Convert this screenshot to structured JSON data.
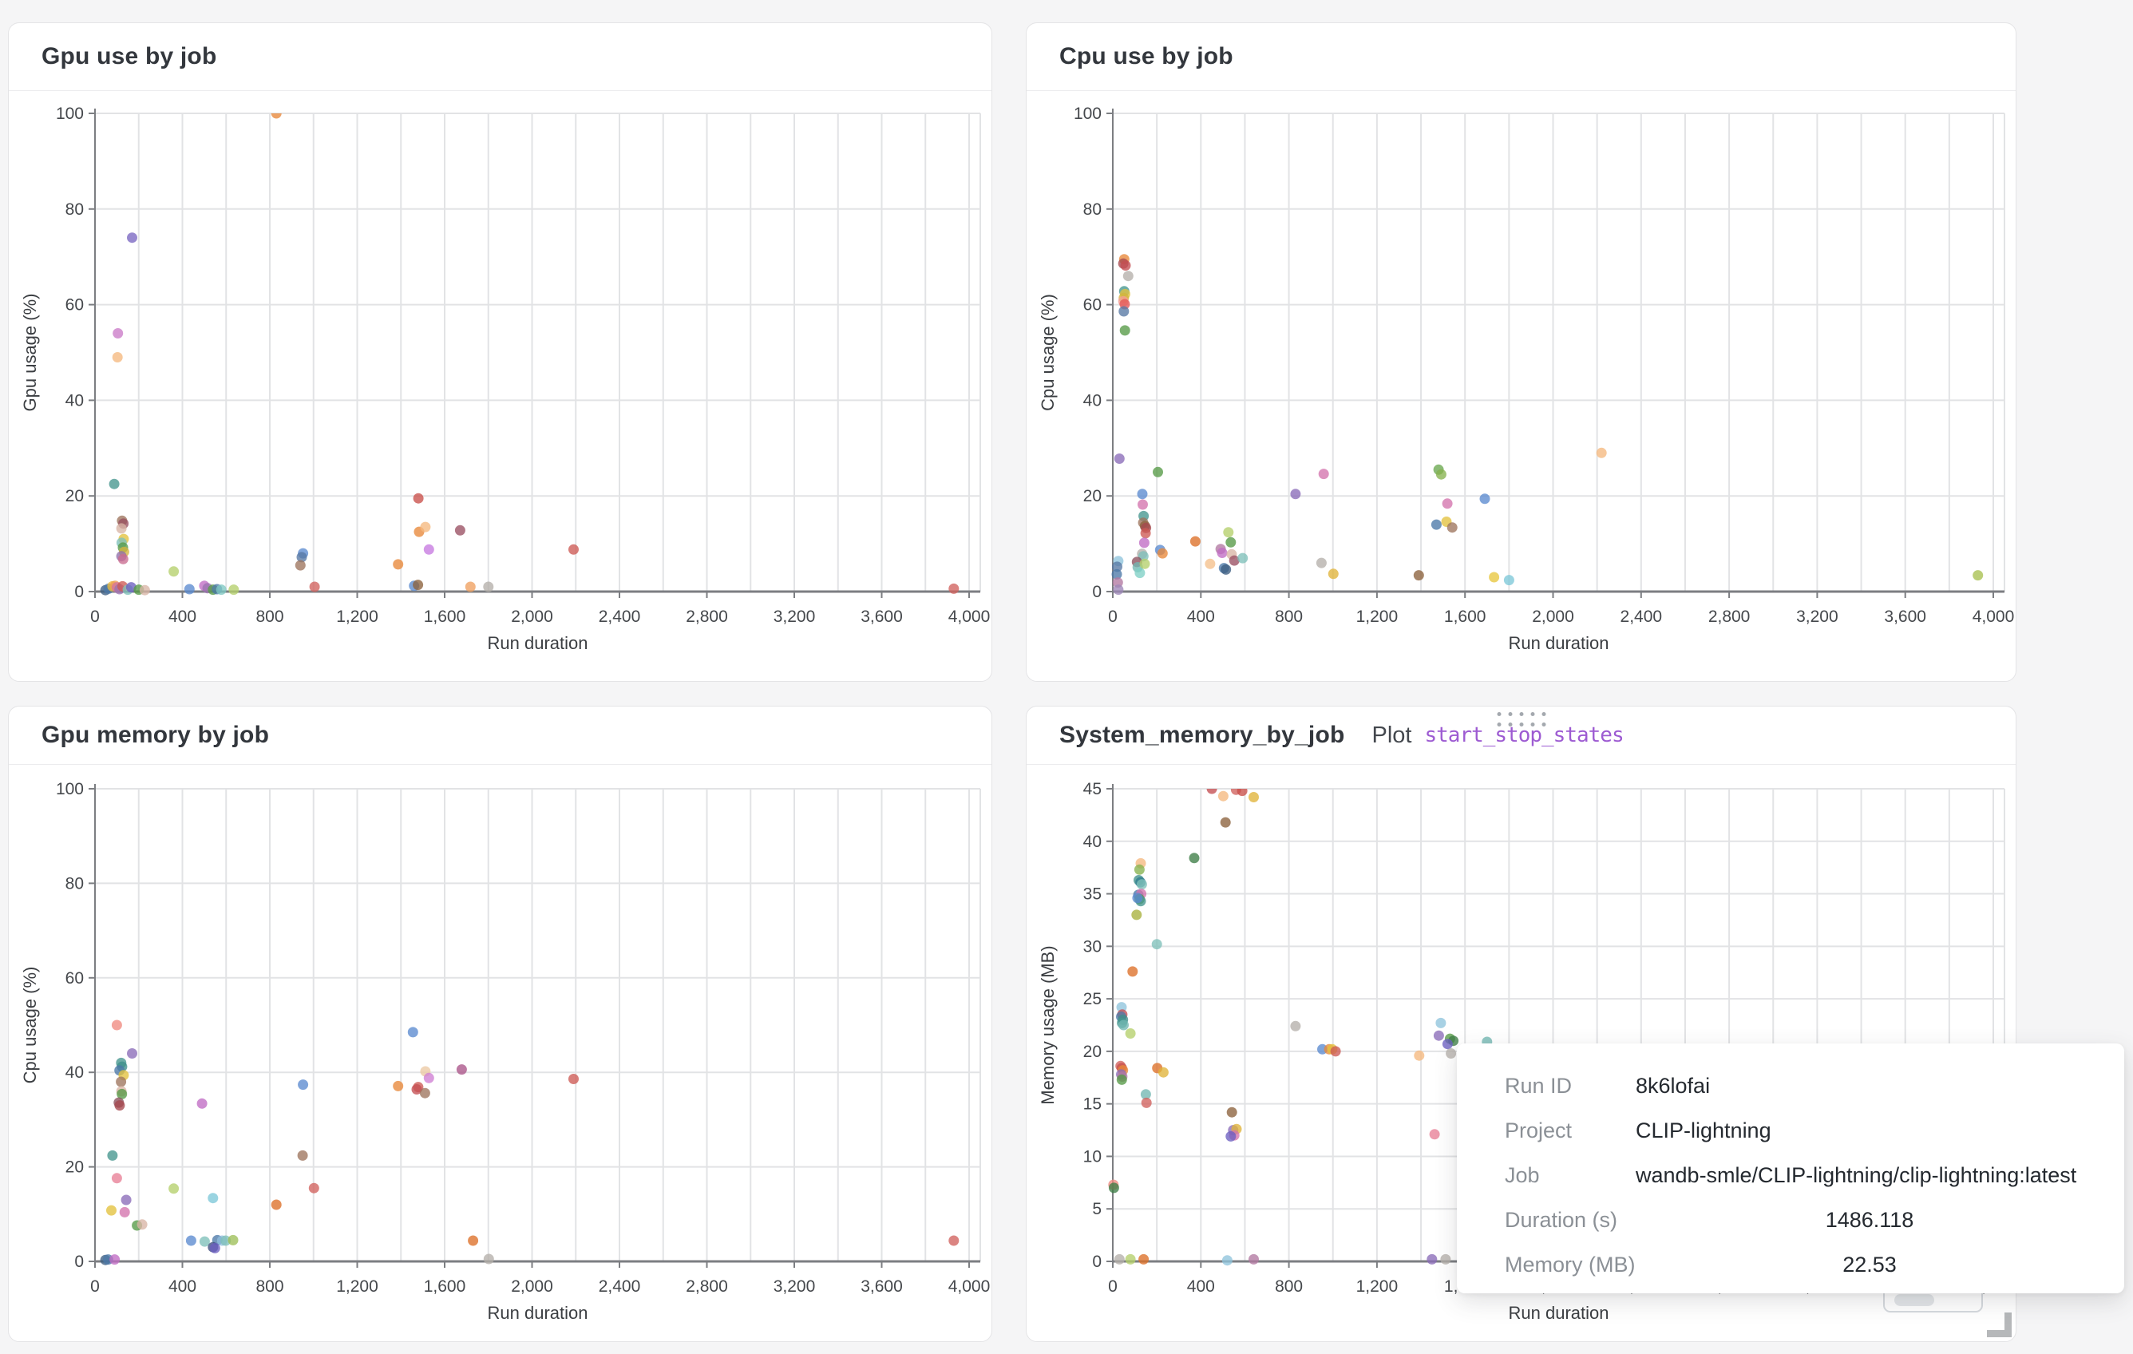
{
  "page": {
    "background": "#f5f5f6",
    "accent_link_color": "#9d5bd2"
  },
  "panels": [
    {
      "id": "gpu-use",
      "title": "Gpu use by job"
    },
    {
      "id": "cpu-use",
      "title": "Cpu use by job"
    },
    {
      "id": "gpu-memory",
      "title": "Gpu memory by job"
    },
    {
      "id": "system-memory",
      "title": "System_memory_by_job",
      "plot_label": "Plot",
      "plot_link": "start_stop_states"
    }
  ],
  "tooltip": {
    "rows": [
      {
        "label": "Run ID",
        "value": "8k6lofai",
        "align": "left"
      },
      {
        "label": "Project",
        "value": "CLIP-lightning",
        "align": "left"
      },
      {
        "label": "Job",
        "value": "wandb-smle/CLIP-lightning/clip-lightning:latest",
        "align": "left"
      },
      {
        "label": "Duration (s)",
        "value": "1486.118",
        "align": "center"
      },
      {
        "label": "Memory (MB)",
        "value": "22.53",
        "align": "center"
      }
    ]
  },
  "chart_data": [
    {
      "type": "scatter",
      "title": "Gpu use by job",
      "xlabel": "Run duration",
      "ylabel": "Gpu usage (%)",
      "xlim": [
        0,
        4000
      ],
      "ylim": [
        0,
        100
      ],
      "x_tick_step": 400,
      "x_grid_step": 200,
      "y_tick_step": 20,
      "grid": true,
      "legend": "none",
      "points": [
        [
          830,
          100,
          "#e8883a"
        ],
        [
          170,
          74,
          "#7a66c2"
        ],
        [
          105,
          54,
          "#cb7bc8"
        ],
        [
          103,
          49,
          "#f5b97f"
        ],
        [
          88,
          22.5,
          "#45968e"
        ],
        [
          124,
          14.8,
          "#9d755d"
        ],
        [
          130,
          14.2,
          "#994f5f"
        ],
        [
          121,
          13.2,
          "#d8b5a5"
        ],
        [
          131,
          11,
          "#e3c23d"
        ],
        [
          122,
          10.2,
          "#7fc0ba"
        ],
        [
          128,
          9.2,
          "#569a47"
        ],
        [
          133,
          8.3,
          "#d4b43e"
        ],
        [
          121,
          7.4,
          "#8f70ab"
        ],
        [
          129,
          6.8,
          "#c96b8f"
        ],
        [
          360,
          4.2,
          "#b5cf6b"
        ],
        [
          952,
          8,
          "#5b8bd0"
        ],
        [
          946,
          7.2,
          "#5778a4"
        ],
        [
          940,
          5.5,
          "#9d755d"
        ],
        [
          1005,
          1,
          "#d1615d"
        ],
        [
          1480,
          19.5,
          "#c9504a"
        ],
        [
          1483,
          12.5,
          "#e8883a"
        ],
        [
          1512,
          13.5,
          "#f5b97f"
        ],
        [
          1528,
          8.8,
          "#c77ae0"
        ],
        [
          1387,
          5.7,
          "#e8883a"
        ],
        [
          1671,
          12.8,
          "#9a4f63"
        ],
        [
          2190,
          8.8,
          "#cd5a54"
        ],
        [
          1718,
          1,
          "#f0a060"
        ],
        [
          1800,
          1,
          "#b5b0ab"
        ],
        [
          3930,
          0.6,
          "#d1615d"
        ],
        [
          48,
          0.3,
          "#3c5e82"
        ],
        [
          62,
          0.6,
          "#4c78a8"
        ],
        [
          80,
          1.1,
          "#e8b83d"
        ],
        [
          92,
          1.2,
          "#ef9f52"
        ],
        [
          100,
          0.9,
          "#d4739f"
        ],
        [
          112,
          0.5,
          "#9b72b0"
        ],
        [
          126,
          1.1,
          "#cd5a54"
        ],
        [
          150,
          0.4,
          "#7fc0ba"
        ],
        [
          166,
          0.9,
          "#6b5fc0"
        ],
        [
          200,
          0.4,
          "#569a47"
        ],
        [
          228,
          0.3,
          "#d8b5a5"
        ],
        [
          432,
          0.5,
          "#5b8bd0"
        ],
        [
          500,
          1.2,
          "#c06cc4"
        ],
        [
          515,
          0.7,
          "#9b72b0"
        ],
        [
          540,
          0.4,
          "#569a47"
        ],
        [
          558,
          0.5,
          "#4c78a8"
        ],
        [
          578,
          0.4,
          "#7fc8c3"
        ],
        [
          635,
          0.4,
          "#b5cf6b"
        ],
        [
          1460,
          1.2,
          "#5b8bd0"
        ],
        [
          1478,
          1.4,
          "#8c613c"
        ]
      ]
    },
    {
      "type": "scatter",
      "title": "Cpu use by job",
      "xlabel": "Run duration",
      "ylabel": "Cpu usage (%)",
      "xlim": [
        0,
        4000
      ],
      "ylim": [
        0,
        100
      ],
      "x_tick_step": 400,
      "x_grid_step": 200,
      "y_tick_step": 20,
      "grid": true,
      "legend": "none",
      "points": [
        [
          52,
          69.5,
          "#e8883a"
        ],
        [
          48,
          68.6,
          "#a6484e"
        ],
        [
          58,
          68.2,
          "#c44e52"
        ],
        [
          70,
          66,
          "#b5b0ab"
        ],
        [
          52,
          62.8,
          "#45968e"
        ],
        [
          56,
          62.2,
          "#e3c23d"
        ],
        [
          50,
          61.4,
          "#d4b43e"
        ],
        [
          48,
          60.7,
          "#f59d95"
        ],
        [
          54,
          60.1,
          "#e45756"
        ],
        [
          50,
          58.6,
          "#5778a4"
        ],
        [
          55,
          54.6,
          "#569a47"
        ],
        [
          30,
          27.8,
          "#8b6bb8"
        ],
        [
          205,
          25,
          "#569a47"
        ],
        [
          134,
          20.4,
          "#5b8bd0"
        ],
        [
          136,
          18.2,
          "#d373ad"
        ],
        [
          140,
          15.8,
          "#45968e"
        ],
        [
          138,
          14.4,
          "#9d755d"
        ],
        [
          146,
          13.7,
          "#8c613c"
        ],
        [
          151,
          13.3,
          "#a6484e"
        ],
        [
          149,
          12.2,
          "#cd5a54"
        ],
        [
          143,
          10.2,
          "#c06cc4"
        ],
        [
          133,
          7.9,
          "#b5b0ab"
        ],
        [
          139,
          7.4,
          "#7fc0ba"
        ],
        [
          110,
          6.2,
          "#8c4f5c"
        ],
        [
          113,
          5.1,
          "#72b7b2"
        ],
        [
          123,
          3.9,
          "#7fd0c5"
        ],
        [
          145,
          5.8,
          "#b5cf6b"
        ],
        [
          25,
          6.4,
          "#90c4dd"
        ],
        [
          20,
          5.2,
          "#5778a4"
        ],
        [
          18,
          3.6,
          "#4c78a8"
        ],
        [
          23,
          1.9,
          "#b279a2"
        ],
        [
          25,
          0.4,
          "#9e86b8"
        ],
        [
          215,
          8.7,
          "#5b8bd0"
        ],
        [
          226,
          8,
          "#e8883a"
        ],
        [
          375,
          10.5,
          "#dd6f28"
        ],
        [
          442,
          5.8,
          "#f5c08c"
        ],
        [
          525,
          12.4,
          "#b5cf6b"
        ],
        [
          536,
          10.3,
          "#569a47"
        ],
        [
          490,
          8.9,
          "#b279a2"
        ],
        [
          497,
          8.1,
          "#c06cc4"
        ],
        [
          540,
          7.8,
          "#d8b5a5"
        ],
        [
          552,
          6.5,
          "#9a4f63"
        ],
        [
          590,
          7,
          "#7fc0ba"
        ],
        [
          505,
          4.9,
          "#4c78a8"
        ],
        [
          514,
          4.6,
          "#3c5e82"
        ],
        [
          830,
          20.4,
          "#8b6bb8"
        ],
        [
          958,
          24.6,
          "#d373ad"
        ],
        [
          948,
          6,
          "#b5b0ab"
        ],
        [
          1002,
          3.7,
          "#e0b43a"
        ],
        [
          1390,
          3.4,
          "#8c613c"
        ],
        [
          1480,
          25.5,
          "#6aa84f"
        ],
        [
          1492,
          24.5,
          "#87b24e"
        ],
        [
          1520,
          18.4,
          "#d373ad"
        ],
        [
          1470,
          14,
          "#4c78a8"
        ],
        [
          1516,
          14.6,
          "#e3c23d"
        ],
        [
          1542,
          13.4,
          "#9d755d"
        ],
        [
          1690,
          19.4,
          "#5b8bd0"
        ],
        [
          1732,
          3,
          "#e8c63f"
        ],
        [
          1800,
          2.4,
          "#7ec8d8"
        ],
        [
          2220,
          29,
          "#f5b97f"
        ],
        [
          3930,
          3.4,
          "#a8c050"
        ]
      ]
    },
    {
      "type": "scatter",
      "title": "Gpu memory by job",
      "xlabel": "Run duration",
      "ylabel": "Cpu usage (%)",
      "xlim": [
        0,
        4000
      ],
      "ylim": [
        0,
        100
      ],
      "x_tick_step": 400,
      "x_grid_step": 200,
      "y_tick_step": 20,
      "grid": true,
      "legend": "none",
      "points": [
        [
          100,
          50,
          "#ef8a80"
        ],
        [
          170,
          44,
          "#8b6bb8"
        ],
        [
          120,
          42,
          "#45968e"
        ],
        [
          124,
          41.2,
          "#3f8f8a"
        ],
        [
          112,
          40.4,
          "#4c78a8"
        ],
        [
          131,
          39.4,
          "#e3c23d"
        ],
        [
          119,
          38,
          "#9d755d"
        ],
        [
          121,
          36,
          "#d8b5a5"
        ],
        [
          123,
          35.4,
          "#569a47"
        ],
        [
          109,
          33.6,
          "#8c4f5c"
        ],
        [
          113,
          33,
          "#a6484e"
        ],
        [
          80,
          22.4,
          "#45968e"
        ],
        [
          100,
          17.6,
          "#e87f96"
        ],
        [
          360,
          15.4,
          "#b5cf6b"
        ],
        [
          143,
          13,
          "#8b6bb8"
        ],
        [
          540,
          13.4,
          "#7ec8d8"
        ],
        [
          136,
          10.4,
          "#d373ad"
        ],
        [
          75,
          10.8,
          "#e3c23d"
        ],
        [
          192,
          7.6,
          "#569a47"
        ],
        [
          216,
          7.8,
          "#d8b5a5"
        ],
        [
          440,
          4.4,
          "#5b8bd0"
        ],
        [
          502,
          4.2,
          "#7fc0ba"
        ],
        [
          560,
          4.5,
          "#4c78a8"
        ],
        [
          582,
          4.4,
          "#90bede"
        ],
        [
          598,
          4.4,
          "#7fc0ba"
        ],
        [
          632,
          4.5,
          "#9ebf58"
        ],
        [
          540,
          3,
          "#3c4b7c"
        ],
        [
          549,
          2.8,
          "#6b5fc0"
        ],
        [
          830,
          12,
          "#dd6f28"
        ],
        [
          950,
          22.4,
          "#9d755d"
        ],
        [
          1002,
          15.5,
          "#d1615d"
        ],
        [
          952,
          37.4,
          "#5b8bd0"
        ],
        [
          490,
          33.4,
          "#c06cc4"
        ],
        [
          1455,
          48.5,
          "#5b8bd0"
        ],
        [
          1387,
          37.1,
          "#e8883a"
        ],
        [
          1479,
          36.9,
          "#cd5a54"
        ],
        [
          1472,
          36.4,
          "#c44e52"
        ],
        [
          1512,
          40.2,
          "#ecc9a4"
        ],
        [
          1528,
          38.8,
          "#cf7fd4"
        ],
        [
          1510,
          35.6,
          "#9d755d"
        ],
        [
          1678,
          40.6,
          "#aa5589"
        ],
        [
          2190,
          38.6,
          "#cd5a54"
        ],
        [
          1730,
          4.4,
          "#dd6f28"
        ],
        [
          1802,
          0.5,
          "#b5b0ab"
        ],
        [
          3930,
          4.4,
          "#d1615d"
        ],
        [
          48,
          0.3,
          "#3c5e82"
        ],
        [
          60,
          0.4,
          "#4c78a8"
        ],
        [
          90,
          0.4,
          "#c06cc4"
        ]
      ]
    },
    {
      "type": "scatter",
      "title": "System_memory_by_job",
      "xlabel": "Run duration",
      "ylabel": "Memory usage (MB)",
      "xlim": [
        0,
        4000
      ],
      "ylim": [
        0,
        45
      ],
      "x_tick_step": 400,
      "x_grid_step": 200,
      "y_tick_step": 5,
      "grid": true,
      "legend": "none",
      "points": [
        [
          450,
          45,
          "#c44e52"
        ],
        [
          560,
          44.9,
          "#d1615d"
        ],
        [
          588,
          44.8,
          "#c9504a"
        ],
        [
          502,
          44.3,
          "#f5b97f"
        ],
        [
          640,
          44.2,
          "#e0b43a"
        ],
        [
          512,
          41.8,
          "#8c613c"
        ],
        [
          370,
          38.4,
          "#3e7d46"
        ],
        [
          127,
          37.9,
          "#f5b97f"
        ],
        [
          121,
          37.3,
          "#87b24e"
        ],
        [
          118,
          36.3,
          "#3f8f8a"
        ],
        [
          126,
          36.1,
          "#2f7e8f"
        ],
        [
          132,
          35.9,
          "#7fc0ba"
        ],
        [
          116,
          34.9,
          "#4c78a8"
        ],
        [
          129,
          35,
          "#d373ad"
        ],
        [
          121,
          34.5,
          "#569a47"
        ],
        [
          127,
          34.3,
          "#45968e"
        ],
        [
          112,
          34.6,
          "#5b8bd0"
        ],
        [
          108,
          33,
          "#a8b13c"
        ],
        [
          200,
          30.2,
          "#7fc0ba"
        ],
        [
          90,
          27.6,
          "#dd6f28"
        ],
        [
          40,
          24.2,
          "#90c4dd"
        ],
        [
          43,
          23.5,
          "#c44e52"
        ],
        [
          38,
          23.3,
          "#4c78a8"
        ],
        [
          46,
          23,
          "#3f8f8a"
        ],
        [
          42,
          22.7,
          "#45968e"
        ],
        [
          49,
          22.5,
          "#72b7b2"
        ],
        [
          80,
          21.7,
          "#b5cf6b"
        ],
        [
          830,
          22.4,
          "#b5b0ab"
        ],
        [
          35,
          18.6,
          "#d1615d"
        ],
        [
          41,
          18.4,
          "#c9504a"
        ],
        [
          46,
          18.2,
          "#e8883a"
        ],
        [
          38,
          17.8,
          "#8b6bb8"
        ],
        [
          43,
          17.6,
          "#b279a2"
        ],
        [
          41,
          17.3,
          "#569a47"
        ],
        [
          202,
          18.4,
          "#dd6f28"
        ],
        [
          230,
          18,
          "#e0b43a"
        ],
        [
          150,
          15.9,
          "#72b7b2"
        ],
        [
          153,
          15.1,
          "#d1615d"
        ],
        [
          952,
          20.2,
          "#5b8bd0"
        ],
        [
          983,
          20.2,
          "#e8883a"
        ],
        [
          997,
          20.2,
          "#e3c23d"
        ],
        [
          1012,
          20,
          "#cd5a54"
        ],
        [
          1392,
          19.6,
          "#f5b97f"
        ],
        [
          1490,
          22.7,
          "#90c4dd"
        ],
        [
          1481,
          21.5,
          "#8b6bb8"
        ],
        [
          1532,
          21.2,
          "#569a47"
        ],
        [
          1547,
          21,
          "#3e7d46"
        ],
        [
          1521,
          20.7,
          "#6b5fc0"
        ],
        [
          1536,
          19.8,
          "#b5b0ab"
        ],
        [
          1700,
          20.9,
          "#72b7b2"
        ],
        [
          1462,
          12.1,
          "#e87f96"
        ],
        [
          541,
          14.2,
          "#8c613c"
        ],
        [
          547,
          12.5,
          "#8b6bb8"
        ],
        [
          562,
          12.6,
          "#e0b43a"
        ],
        [
          552,
          12,
          "#d373ad"
        ],
        [
          536,
          11.9,
          "#6b5fc0"
        ],
        [
          3,
          7.3,
          "#ef8a80"
        ],
        [
          5,
          7,
          "#3e7d46"
        ],
        [
          30,
          0.2,
          "#b5b0ab"
        ],
        [
          80,
          0.2,
          "#b5cf6b"
        ],
        [
          140,
          0.2,
          "#dd6f28"
        ],
        [
          520,
          0.1,
          "#90c4dd"
        ],
        [
          640,
          0.2,
          "#b279a2"
        ],
        [
          1450,
          0.2,
          "#8b6bb8"
        ],
        [
          1512,
          0.2,
          "#b5b0ab"
        ]
      ]
    }
  ]
}
